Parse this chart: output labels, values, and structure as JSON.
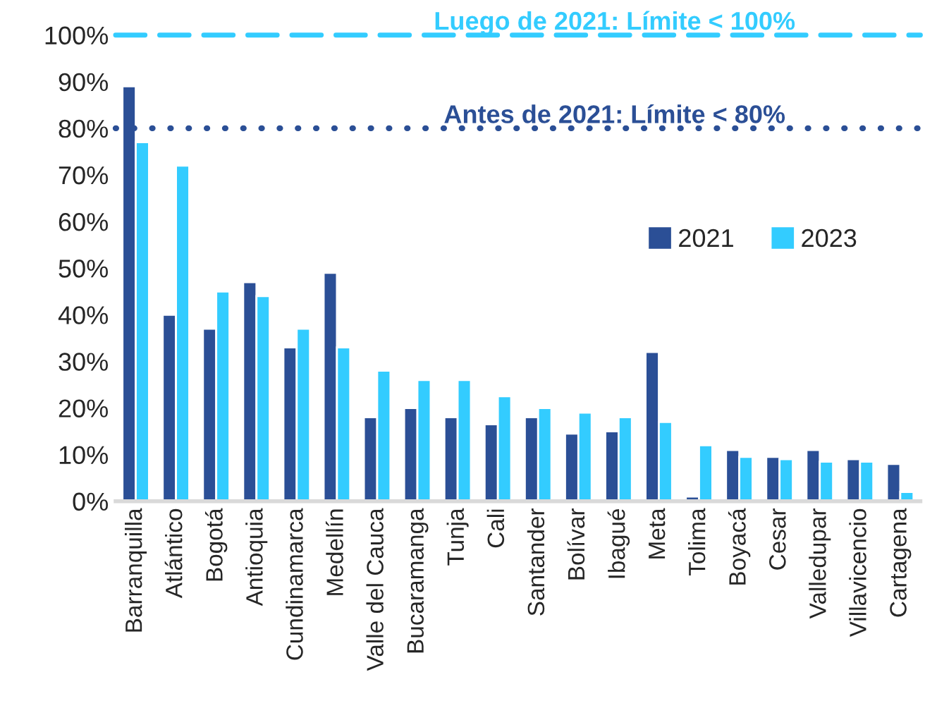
{
  "chart_data": {
    "type": "bar",
    "categories": [
      "Barranquilla",
      "Atlántico",
      "Bogotá",
      "Antioquia",
      "Cundinamarca",
      "Medellín",
      "Valle del Cauca",
      "Bucaramanga",
      "Tunja",
      "Cali",
      "Santander",
      "Bolívar",
      "Ibagué",
      "Meta",
      "Tolima",
      "Boyacá",
      "Cesar",
      "Valledupar",
      "Villavicencio",
      "Cartagena"
    ],
    "series": [
      {
        "name": "2021",
        "color": "#2b4f96",
        "values": [
          89,
          40,
          37,
          47,
          33,
          49,
          18,
          20,
          18,
          16.5,
          18,
          14.5,
          15,
          32,
          1,
          11,
          9.5,
          11,
          9,
          8
        ]
      },
      {
        "name": "2023",
        "color": "#33ccff",
        "values": [
          77,
          72,
          45,
          44,
          37,
          33,
          28,
          26,
          26,
          22.5,
          20,
          19,
          18,
          17,
          12,
          9.5,
          9,
          8.5,
          8.5,
          2
        ]
      }
    ],
    "ylim": [
      0,
      100
    ],
    "yticks": [
      {
        "value": 0,
        "label": "0%"
      },
      {
        "value": 10,
        "label": "10%"
      },
      {
        "value": 20,
        "label": "20%"
      },
      {
        "value": 30,
        "label": "30%"
      },
      {
        "value": 40,
        "label": "40%"
      },
      {
        "value": 50,
        "label": "50%"
      },
      {
        "value": 60,
        "label": "60%"
      },
      {
        "value": 70,
        "label": "70%"
      },
      {
        "value": 80,
        "label": "80%"
      },
      {
        "value": 90,
        "label": "90%"
      },
      {
        "value": 100,
        "label": "100%"
      }
    ],
    "ref_lines": [
      {
        "axis": "y",
        "value": 100,
        "label": "Luego de 2021: Límite < 100%",
        "color": "#33ccff",
        "line_style": "dashed"
      },
      {
        "axis": "y",
        "value": 80,
        "label": "Antes de 2021: Límite < 80%",
        "color": "#2b4f96",
        "line_style": "dotted"
      }
    ],
    "legend": "right",
    "grid": false
  }
}
